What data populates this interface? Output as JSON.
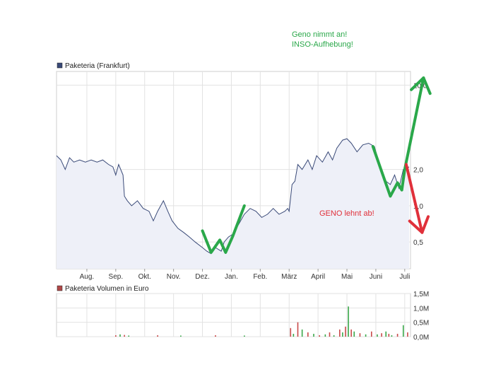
{
  "chart_data": [
    {
      "type": "line",
      "title": "",
      "legend": {
        "label": "Paketeria (Frankfurt)",
        "color": "#3a4a78",
        "placement": "top-left"
      },
      "y_scale": "log",
      "ylim": [
        0.3,
        13.0
      ],
      "y_ticks": [
        {
          "value": 0.5,
          "label": "0,5"
        },
        {
          "value": 1.0,
          "label": "1,0"
        },
        {
          "value": 2.0,
          "label": "2,0"
        },
        {
          "value": 10.0,
          "label": "10,0"
        }
      ],
      "x_months": [
        {
          "pos": 1.05,
          "label": "Aug."
        },
        {
          "pos": 2.05,
          "label": "Sep."
        },
        {
          "pos": 3.05,
          "label": "Okt."
        },
        {
          "pos": 4.05,
          "label": "Nov."
        },
        {
          "pos": 5.05,
          "label": "Dez."
        },
        {
          "pos": 6.05,
          "label": "Jan."
        },
        {
          "pos": 7.05,
          "label": "Feb."
        },
        {
          "pos": 8.05,
          "label": "März"
        },
        {
          "pos": 9.05,
          "label": "April"
        },
        {
          "pos": 10.05,
          "label": "Mai"
        },
        {
          "pos": 11.05,
          "label": "Juni"
        },
        {
          "pos": 12.05,
          "label": "Juli"
        }
      ],
      "xlim": [
        0,
        12.25
      ],
      "series": [
        {
          "name": "Paketeria (Frankfurt)",
          "color": "#3a4a78",
          "fill": "#eef0f8",
          "points": [
            [
              0,
              2.6
            ],
            [
              0.15,
              2.4
            ],
            [
              0.3,
              2.0
            ],
            [
              0.45,
              2.5
            ],
            [
              0.6,
              2.3
            ],
            [
              0.8,
              2.4
            ],
            [
              1.0,
              2.3
            ],
            [
              1.2,
              2.4
            ],
            [
              1.4,
              2.3
            ],
            [
              1.6,
              2.4
            ],
            [
              1.8,
              2.2
            ],
            [
              1.95,
              2.1
            ],
            [
              2.05,
              1.8
            ],
            [
              2.15,
              2.2
            ],
            [
              2.3,
              1.8
            ],
            [
              2.35,
              1.2
            ],
            [
              2.45,
              1.1
            ],
            [
              2.6,
              1.0
            ],
            [
              2.8,
              1.1
            ],
            [
              3.0,
              0.95
            ],
            [
              3.2,
              0.9
            ],
            [
              3.35,
              0.75
            ],
            [
              3.5,
              0.9
            ],
            [
              3.7,
              1.1
            ],
            [
              3.85,
              0.9
            ],
            [
              4.0,
              0.75
            ],
            [
              4.2,
              0.65
            ],
            [
              4.4,
              0.6
            ],
            [
              4.6,
              0.55
            ],
            [
              4.8,
              0.5
            ],
            [
              5.05,
              0.45
            ],
            [
              5.2,
              0.42
            ],
            [
              5.35,
              0.4
            ],
            [
              5.5,
              0.45
            ],
            [
              5.7,
              0.42
            ],
            [
              5.8,
              0.5
            ],
            [
              5.95,
              0.55
            ],
            [
              6.1,
              0.58
            ],
            [
              6.3,
              0.7
            ],
            [
              6.5,
              0.85
            ],
            [
              6.7,
              0.95
            ],
            [
              6.9,
              0.9
            ],
            [
              7.1,
              0.8
            ],
            [
              7.3,
              0.85
            ],
            [
              7.5,
              0.95
            ],
            [
              7.7,
              0.85
            ],
            [
              7.9,
              0.9
            ],
            [
              8.0,
              0.95
            ],
            [
              8.05,
              0.9
            ],
            [
              8.15,
              1.5
            ],
            [
              8.25,
              1.6
            ],
            [
              8.35,
              2.2
            ],
            [
              8.5,
              2.0
            ],
            [
              8.7,
              2.4
            ],
            [
              8.85,
              2.0
            ],
            [
              9.0,
              2.6
            ],
            [
              9.2,
              2.3
            ],
            [
              9.4,
              2.8
            ],
            [
              9.55,
              2.4
            ],
            [
              9.7,
              3.0
            ],
            [
              9.9,
              3.5
            ],
            [
              10.05,
              3.6
            ],
            [
              10.2,
              3.3
            ],
            [
              10.4,
              2.8
            ],
            [
              10.6,
              3.2
            ],
            [
              10.8,
              3.3
            ],
            [
              11.0,
              3.1
            ],
            [
              11.2,
              2.1
            ],
            [
              11.4,
              1.6
            ],
            [
              11.55,
              1.5
            ],
            [
              11.7,
              1.8
            ],
            [
              11.85,
              1.4
            ],
            [
              12.0,
              2.0
            ],
            [
              12.2,
              2.1
            ]
          ]
        }
      ]
    },
    {
      "type": "bar",
      "legend": {
        "label": "Paketeria Volumen in Euro",
        "color": "#b04848",
        "placement": "top-left"
      },
      "ylim": [
        0,
        1.5
      ],
      "y_ticks": [
        {
          "value": 0.0,
          "label": "0,0M"
        },
        {
          "value": 0.5,
          "label": "0,5M"
        },
        {
          "value": 1.0,
          "label": "1,0M"
        },
        {
          "value": 1.5,
          "label": "1,5M"
        }
      ],
      "xlim": [
        0,
        12.25
      ],
      "bars": [
        [
          2.05,
          0.05
        ],
        [
          2.2,
          0.08
        ],
        [
          2.35,
          0.06
        ],
        [
          2.5,
          0.04
        ],
        [
          3.5,
          0.05
        ],
        [
          4.3,
          0.04
        ],
        [
          5.5,
          0.05
        ],
        [
          6.5,
          0.04
        ],
        [
          8.1,
          0.3
        ],
        [
          8.2,
          0.1
        ],
        [
          8.35,
          0.5
        ],
        [
          8.5,
          0.25
        ],
        [
          8.7,
          0.15
        ],
        [
          8.9,
          0.1
        ],
        [
          9.1,
          0.05
        ],
        [
          9.3,
          0.08
        ],
        [
          9.45,
          0.15
        ],
        [
          9.6,
          0.05
        ],
        [
          9.8,
          0.25
        ],
        [
          9.9,
          0.15
        ],
        [
          10.0,
          0.35
        ],
        [
          10.1,
          1.05
        ],
        [
          10.2,
          0.25
        ],
        [
          10.3,
          0.18
        ],
        [
          10.5,
          0.12
        ],
        [
          10.7,
          0.08
        ],
        [
          10.9,
          0.18
        ],
        [
          11.1,
          0.08
        ],
        [
          11.25,
          0.12
        ],
        [
          11.4,
          0.18
        ],
        [
          11.5,
          0.1
        ],
        [
          11.6,
          0.05
        ],
        [
          11.8,
          0.1
        ],
        [
          12.0,
          0.4
        ],
        [
          12.15,
          0.15
        ]
      ],
      "bar_colors": [
        "#c84a4a",
        "#3aa84a"
      ]
    }
  ],
  "annotations": {
    "geno_accepts_line1": "Geno nimmt an!",
    "geno_accepts_line2": "INSO-Aufhebung!",
    "geno_rejects": "GENO lehnt ab!"
  },
  "drawn_overlays": {
    "green_color": "#2aa84a",
    "red_color": "#e0303a",
    "green_w_segment": [
      [
        5.05,
        0.62
      ],
      [
        5.35,
        0.41
      ],
      [
        5.65,
        0.52
      ],
      [
        5.85,
        0.41
      ],
      [
        6.1,
        0.56
      ],
      [
        6.5,
        1.0
      ]
    ],
    "green_rally_segment": [
      [
        10.95,
        3.1
      ],
      [
        11.55,
        1.2
      ],
      [
        11.8,
        1.55
      ],
      [
        11.95,
        1.35
      ],
      [
        12.05,
        2.0
      ],
      [
        12.7,
        11.5
      ]
    ],
    "red_fall_segment": [
      [
        12.1,
        2.2
      ],
      [
        12.65,
        0.6
      ]
    ]
  }
}
